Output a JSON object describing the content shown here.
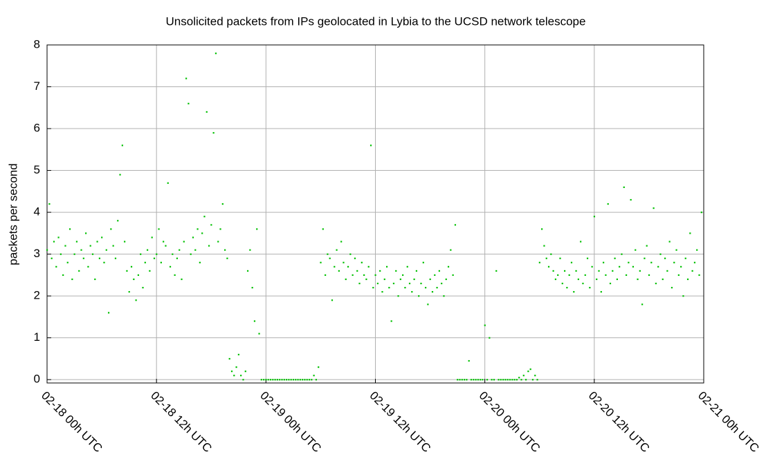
{
  "chart_data": {
    "type": "scatter",
    "title": "Unsolicited packets from IPs geolocated in Lybia to the UCSD network telescope",
    "y_label": "packets per second",
    "color": "#00c000",
    "grid": true,
    "xlim": [
      0,
      72
    ],
    "ylim": [
      -0.08,
      8
    ],
    "yticks": [
      0,
      1,
      2,
      3,
      4,
      5,
      6,
      7,
      8
    ],
    "xticks": [
      {
        "value": 0,
        "label": "02-18 00h UTC"
      },
      {
        "value": 12,
        "label": "02-18 12h UTC"
      },
      {
        "value": 24,
        "label": "02-19 00h UTC"
      },
      {
        "value": 36,
        "label": "02-19 12h UTC"
      },
      {
        "value": 48,
        "label": "02-20 00h UTC"
      },
      {
        "value": 60,
        "label": "02-20 12h UTC"
      },
      {
        "value": 72,
        "label": "02-21 00h UTC"
      }
    ],
    "x": [
      0,
      0.25,
      0.5,
      0.75,
      1,
      1.25,
      1.5,
      1.75,
      2,
      2.25,
      2.5,
      2.75,
      3,
      3.25,
      3.5,
      3.75,
      4,
      4.25,
      4.5,
      4.75,
      5,
      5.25,
      5.5,
      5.75,
      6,
      6.25,
      6.5,
      6.75,
      7,
      7.25,
      7.5,
      7.75,
      8,
      8.25,
      8.5,
      8.75,
      9,
      9.25,
      9.5,
      9.75,
      10,
      10.25,
      10.5,
      10.75,
      11,
      11.25,
      11.5,
      11.75,
      12,
      12.25,
      12.5,
      12.75,
      13,
      13.25,
      13.5,
      13.75,
      14,
      14.25,
      14.5,
      14.75,
      15,
      15.25,
      15.5,
      15.75,
      16,
      16.25,
      16.5,
      16.75,
      17,
      17.25,
      17.5,
      17.75,
      18,
      18.25,
      18.5,
      18.75,
      19,
      19.25,
      19.5,
      19.75,
      20,
      20.25,
      20.5,
      20.75,
      21,
      21.25,
      21.5,
      21.75,
      22,
      22.25,
      22.5,
      22.75,
      23,
      23.25,
      23.5,
      23.75,
      24,
      24.25,
      24.5,
      24.75,
      25,
      25.25,
      25.5,
      25.75,
      26,
      26.25,
      26.5,
      26.75,
      27,
      27.25,
      27.5,
      27.75,
      28,
      28.25,
      28.5,
      28.75,
      29,
      29.25,
      29.5,
      29.75,
      30,
      30.25,
      30.5,
      30.75,
      31,
      31.25,
      31.5,
      31.75,
      32,
      32.25,
      32.5,
      32.75,
      33,
      33.25,
      33.5,
      33.75,
      34,
      34.25,
      34.5,
      34.75,
      35,
      35.25,
      35.5,
      35.75,
      36,
      36.25,
      36.5,
      36.75,
      37,
      37.25,
      37.5,
      37.75,
      38,
      38.25,
      38.5,
      38.75,
      39,
      39.25,
      39.5,
      39.75,
      40,
      40.25,
      40.5,
      40.75,
      41,
      41.25,
      41.5,
      41.75,
      42,
      42.25,
      42.5,
      42.75,
      43,
      43.25,
      43.5,
      43.75,
      44,
      44.25,
      44.5,
      44.75,
      45,
      45.25,
      45.5,
      45.75,
      46,
      46.25,
      46.5,
      46.75,
      47,
      47.25,
      47.5,
      47.75,
      48,
      48.25,
      48.5,
      48.75,
      49,
      49.25,
      49.5,
      49.75,
      50,
      50.25,
      50.5,
      50.75,
      51,
      51.25,
      51.5,
      51.75,
      52,
      52.25,
      52.5,
      52.75,
      53,
      53.25,
      53.5,
      53.75,
      54,
      54.25,
      54.5,
      54.75,
      55,
      55.25,
      55.5,
      55.75,
      56,
      56.25,
      56.5,
      56.75,
      57,
      57.25,
      57.5,
      57.75,
      58,
      58.25,
      58.5,
      58.75,
      59,
      59.25,
      59.5,
      59.75,
      60,
      60.25,
      60.5,
      60.75,
      61,
      61.25,
      61.5,
      61.75,
      62,
      62.25,
      62.5,
      62.75,
      63,
      63.25,
      63.5,
      63.75,
      64,
      64.25,
      64.5,
      64.75,
      65,
      65.25,
      65.5,
      65.75,
      66,
      66.25,
      66.5,
      66.75,
      67,
      67.25,
      67.5,
      67.75,
      68,
      68.25,
      68.5,
      68.75,
      69,
      69.25,
      69.5,
      69.75,
      70,
      70.25,
      70.5,
      70.75,
      71,
      71.25,
      71.5,
      71.75
    ],
    "values": [
      3.1,
      4.2,
      2.9,
      3.3,
      2.7,
      3.4,
      3.0,
      2.5,
      3.2,
      2.8,
      3.6,
      2.4,
      3.0,
      3.3,
      2.6,
      3.1,
      2.9,
      3.5,
      2.7,
      3.2,
      3.0,
      2.4,
      3.3,
      2.9,
      3.4,
      2.8,
      3.1,
      1.6,
      3.6,
      3.2,
      2.9,
      3.8,
      4.9,
      5.6,
      3.3,
      2.6,
      2.1,
      2.7,
      2.4,
      1.9,
      2.5,
      3.0,
      2.2,
      2.8,
      3.1,
      2.6,
      3.4,
      2.9,
      3.0,
      3.6,
      2.8,
      3.3,
      3.2,
      4.7,
      2.7,
      3.0,
      2.5,
      2.9,
      3.1,
      2.4,
      3.3,
      7.2,
      6.6,
      3.0,
      3.4,
      3.1,
      3.6,
      2.8,
      3.5,
      3.9,
      6.4,
      3.2,
      3.7,
      5.9,
      7.8,
      3.3,
      3.6,
      4.2,
      3.1,
      2.9,
      0.5,
      0.2,
      0.1,
      0.3,
      0.6,
      0.1,
      0.0,
      0.2,
      2.6,
      3.1,
      2.2,
      1.4,
      3.6,
      1.1,
      0,
      0,
      0,
      0,
      0,
      0,
      0,
      0,
      0,
      0,
      0,
      0,
      0,
      0,
      0,
      0,
      0,
      0,
      0,
      0,
      0,
      0,
      0,
      0.1,
      0,
      0.3,
      2.8,
      3.6,
      2.5,
      3.0,
      2.9,
      1.9,
      2.7,
      3.1,
      2.6,
      3.3,
      2.8,
      2.4,
      2.7,
      3.0,
      2.5,
      2.9,
      2.6,
      2.3,
      2.8,
      2.5,
      2.4,
      2.7,
      5.6,
      2.2,
      2.5,
      2.3,
      2.6,
      2.1,
      2.4,
      2.7,
      2.2,
      1.4,
      2.3,
      2.6,
      2.0,
      2.4,
      2.5,
      2.2,
      2.7,
      2.3,
      2.1,
      2.4,
      2.6,
      2.0,
      2.3,
      2.8,
      2.2,
      1.8,
      2.4,
      2.1,
      2.5,
      2.2,
      2.6,
      2.3,
      2.0,
      2.4,
      2.7,
      3.1,
      2.5,
      3.7,
      0,
      0,
      0,
      0,
      0,
      0.45,
      0,
      0,
      0,
      0,
      0,
      0,
      1.3,
      0,
      1.0,
      0,
      0,
      2.6,
      0,
      0,
      0,
      0,
      0,
      0,
      0,
      0,
      0,
      0.05,
      0,
      0.1,
      0,
      0.2,
      0.25,
      0,
      0.1,
      0,
      2.8,
      3.6,
      3.2,
      2.9,
      2.7,
      3.0,
      2.6,
      2.4,
      2.5,
      2.9,
      2.3,
      2.6,
      2.2,
      2.5,
      2.8,
      2.1,
      2.6,
      2.4,
      3.3,
      2.3,
      2.5,
      2.9,
      2.2,
      2.7,
      3.9,
      2.4,
      2.6,
      2.1,
      2.8,
      2.5,
      4.2,
      2.3,
      2.6,
      2.9,
      2.4,
      2.7,
      3.0,
      4.6,
      2.5,
      2.8,
      4.3,
      2.7,
      3.1,
      2.4,
      2.6,
      1.8,
      2.9,
      3.2,
      2.5,
      2.8,
      4.1,
      2.3,
      2.7,
      3.0,
      2.4,
      2.9,
      2.6,
      3.3,
      2.2,
      2.8,
      3.1,
      2.5,
      2.7,
      2.0,
      2.9,
      2.4,
      3.5,
      2.6,
      2.8,
      3.1,
      2.5,
      4.0
    ]
  }
}
